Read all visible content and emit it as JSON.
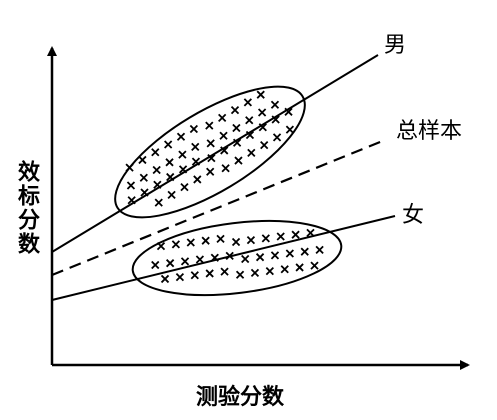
{
  "labels": {
    "male": "男",
    "total": "总样本",
    "female": "女"
  },
  "axes": {
    "y": "效标分数",
    "x": "测验分数"
  }
}
